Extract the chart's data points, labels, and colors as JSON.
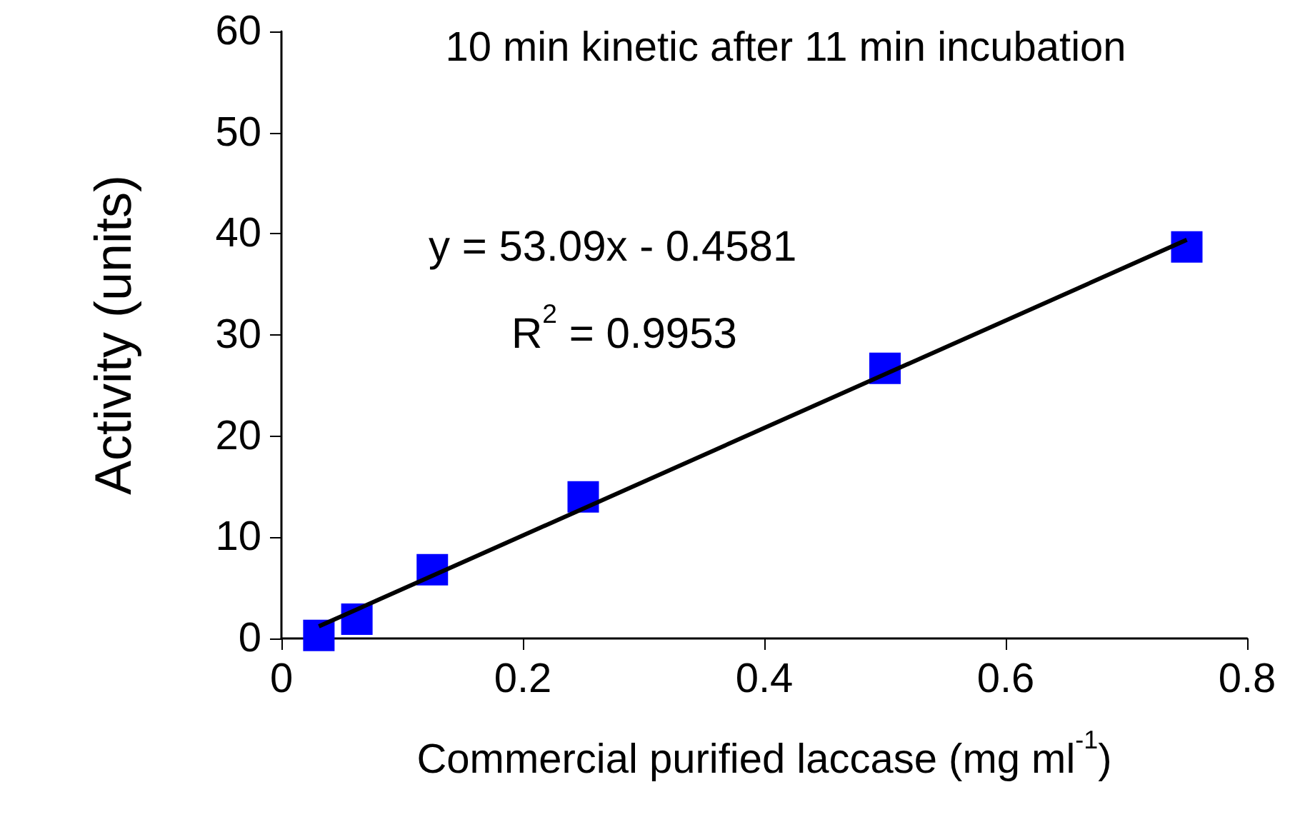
{
  "chart_data": {
    "type": "scatter",
    "title": "10 min kinetic after 11 min incubation",
    "xlabel": "Commercial purified laccase (mg ml$^{-1}$)",
    "ylabel": "Activity (units)",
    "annotations": [
      "y = 53.09x - 0.4581",
      "R$^{2}$ = 0.9953"
    ],
    "x": [
      0.031,
      0.0625,
      0.125,
      0.25,
      0.5,
      0.75
    ],
    "series": [
      {
        "color": "#0000ff",
        "marker": "square",
        "values": [
          0.3,
          1.9,
          6.8,
          14.0,
          26.7,
          38.7
        ]
      },
      {
        "type": "line",
        "color": "#000000",
        "marker": "none",
        "line_style": "solid",
        "x": [
          0.031,
          0.75
        ],
        "values": [
          1.2,
          39.4
        ]
      }
    ],
    "xlim": [
      0,
      0.8
    ],
    "xticks": [
      0,
      0.2,
      0.4,
      0.6,
      0.8
    ],
    "ylim": [
      0,
      60
    ],
    "yticks": [
      0,
      10,
      20,
      30,
      40,
      50,
      60
    ],
    "grid": false
  }
}
